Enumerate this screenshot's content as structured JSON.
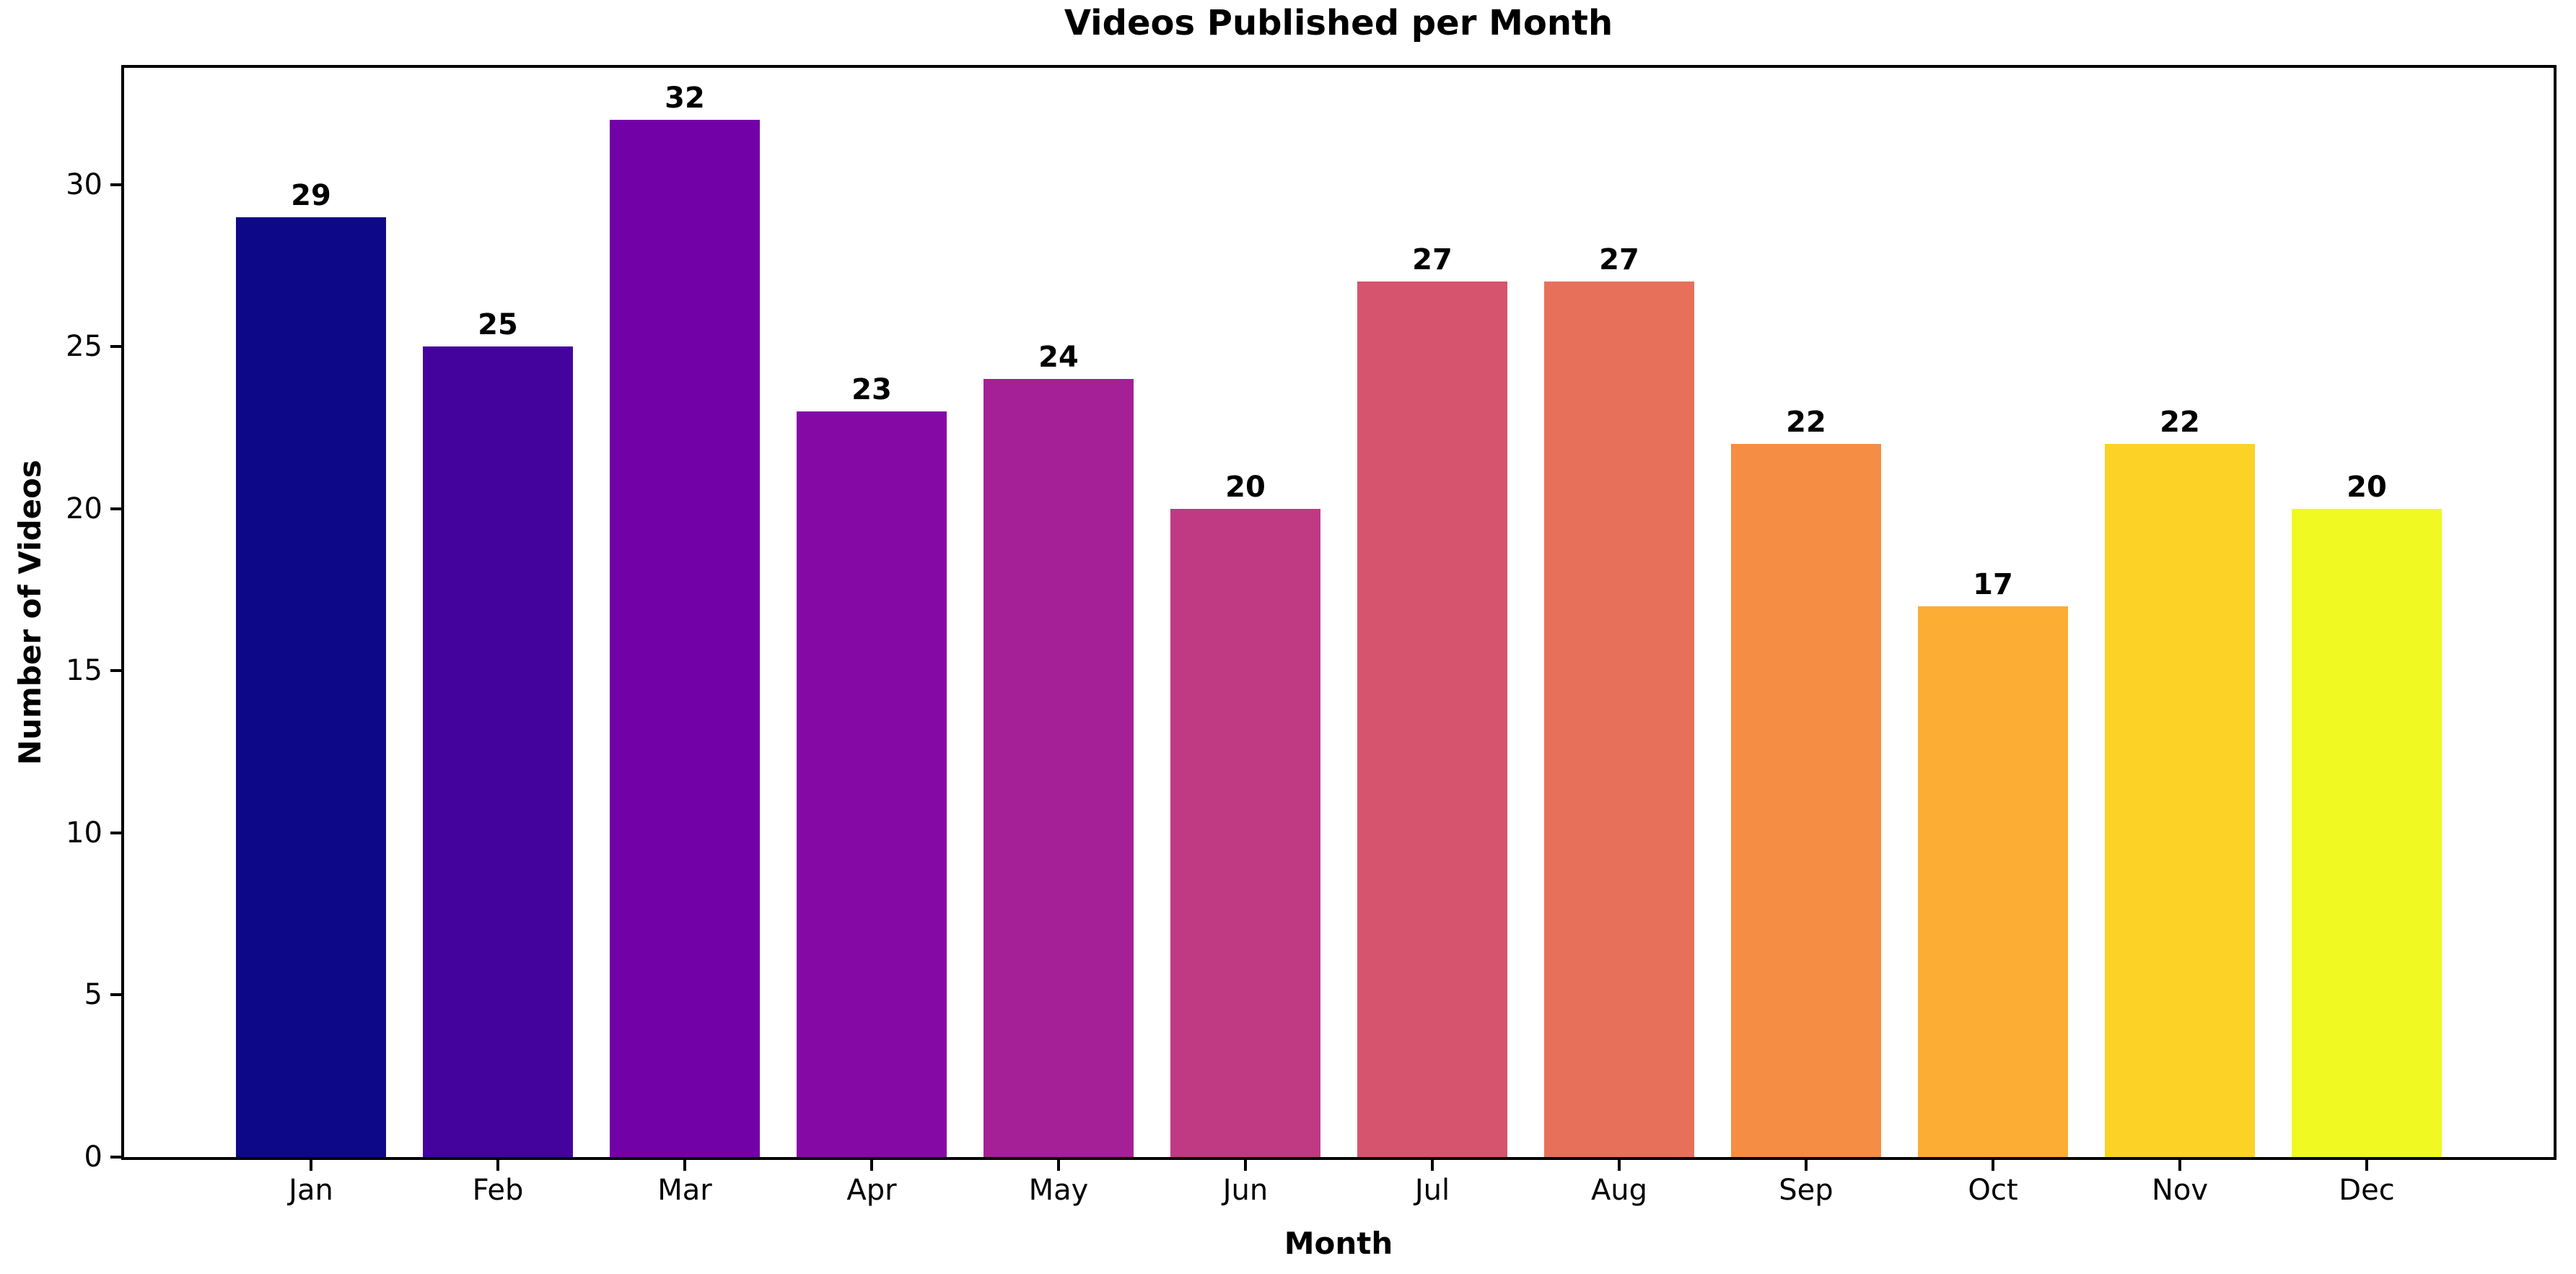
{
  "chart_data": {
    "type": "bar",
    "title": "Videos Published per Month",
    "xlabel": "Month",
    "ylabel": "Number of Videos",
    "categories": [
      "Jan",
      "Feb",
      "Mar",
      "Apr",
      "May",
      "Jun",
      "Jul",
      "Aug",
      "Sep",
      "Oct",
      "Nov",
      "Dec"
    ],
    "values": [
      29,
      25,
      32,
      23,
      24,
      20,
      27,
      27,
      22,
      17,
      22,
      20
    ],
    "bar_colors": [
      "#0d0887",
      "#45039e",
      "#7201a8",
      "#8509a5",
      "#a51f97",
      "#c03a83",
      "#d6546e",
      "#e7705a",
      "#f58d45",
      "#fcad33",
      "#fbd225",
      "#f0f921"
    ],
    "value_labels": [
      "29",
      "25",
      "32",
      "23",
      "24",
      "20",
      "27",
      "27",
      "22",
      "17",
      "22",
      "20"
    ],
    "ylim": [
      0,
      33.6
    ],
    "yticks": [
      0,
      5,
      10,
      15,
      20,
      25,
      30
    ],
    "grid": false,
    "legend": null,
    "bar_width_fraction": 0.8,
    "colors": {
      "background": "#ffffff",
      "axes": "#000000",
      "text": "#000000"
    }
  }
}
